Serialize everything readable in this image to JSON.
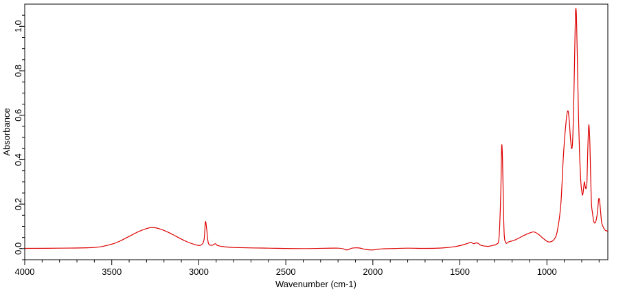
{
  "chart_data": {
    "type": "line",
    "xlabel": "Wavenumber (cm-1)",
    "ylabel": "Absorbance",
    "xlim": [
      4000,
      650
    ],
    "ylim": [
      -0.05,
      1.1
    ],
    "x_ticks": [
      4000,
      3500,
      3000,
      2500,
      2000,
      1500,
      1000
    ],
    "x_tick_labels": [
      "4000",
      "3500",
      "3000",
      "2500",
      "2000",
      "1500",
      "1000"
    ],
    "y_ticks": [
      0.0,
      0.2,
      0.4,
      0.6,
      0.8,
      1.0
    ],
    "y_tick_labels": [
      "0,0",
      "0,2",
      "0,4",
      "0,6",
      "0,8",
      "1,0"
    ],
    "grid": false,
    "legend": "none",
    "line_color": "#dd0000",
    "series": [
      {
        "x": [
          4000,
          3800,
          3600,
          3500,
          3450,
          3400,
          3350,
          3300,
          3270,
          3230,
          3180,
          3130,
          3080,
          3030,
          2990,
          2970,
          2962,
          2955,
          2945,
          2925,
          2905,
          2895,
          2870,
          2800,
          2600,
          2400,
          2200,
          2150,
          2120,
          2080,
          2040,
          2000,
          1960,
          1900,
          1800,
          1700,
          1600,
          1520,
          1460,
          1440,
          1420,
          1410,
          1395,
          1380,
          1340,
          1310,
          1290,
          1275,
          1265,
          1260,
          1255,
          1250,
          1245,
          1235,
          1220,
          1180,
          1130,
          1100,
          1075,
          1050,
          1020,
          990,
          960,
          940,
          920,
          905,
          890,
          880,
          872,
          865,
          858,
          852,
          846,
          840,
          835,
          830,
          825,
          818,
          812,
          805,
          800,
          795,
          790,
          785,
          780,
          775,
          770,
          765,
          760,
          757,
          753,
          745,
          738,
          730,
          720,
          710,
          703,
          698,
          693,
          686,
          678,
          668,
          658,
          650
        ],
        "y": [
          0.001,
          0.002,
          0.005,
          0.02,
          0.035,
          0.055,
          0.075,
          0.09,
          0.095,
          0.09,
          0.075,
          0.055,
          0.035,
          0.02,
          0.015,
          0.04,
          0.12,
          0.09,
          0.025,
          0.015,
          0.022,
          0.015,
          0.01,
          0.005,
          0.002,
          0.0,
          0.002,
          -0.006,
          0.002,
          0.003,
          -0.004,
          -0.006,
          -0.002,
          0.0,
          0.002,
          0.001,
          0.003,
          0.01,
          0.022,
          0.028,
          0.022,
          0.025,
          0.024,
          0.015,
          0.01,
          0.015,
          0.02,
          0.05,
          0.25,
          0.46,
          0.4,
          0.2,
          0.06,
          0.025,
          0.03,
          0.04,
          0.06,
          0.07,
          0.075,
          0.065,
          0.045,
          0.03,
          0.04,
          0.08,
          0.2,
          0.42,
          0.57,
          0.62,
          0.58,
          0.5,
          0.45,
          0.49,
          0.65,
          0.9,
          1.07,
          1.04,
          0.85,
          0.58,
          0.42,
          0.3,
          0.26,
          0.24,
          0.265,
          0.3,
          0.28,
          0.27,
          0.3,
          0.45,
          0.55,
          0.54,
          0.47,
          0.22,
          0.16,
          0.12,
          0.12,
          0.16,
          0.22,
          0.22,
          0.18,
          0.12,
          0.1,
          0.085,
          0.08,
          0.078
        ]
      }
    ]
  }
}
